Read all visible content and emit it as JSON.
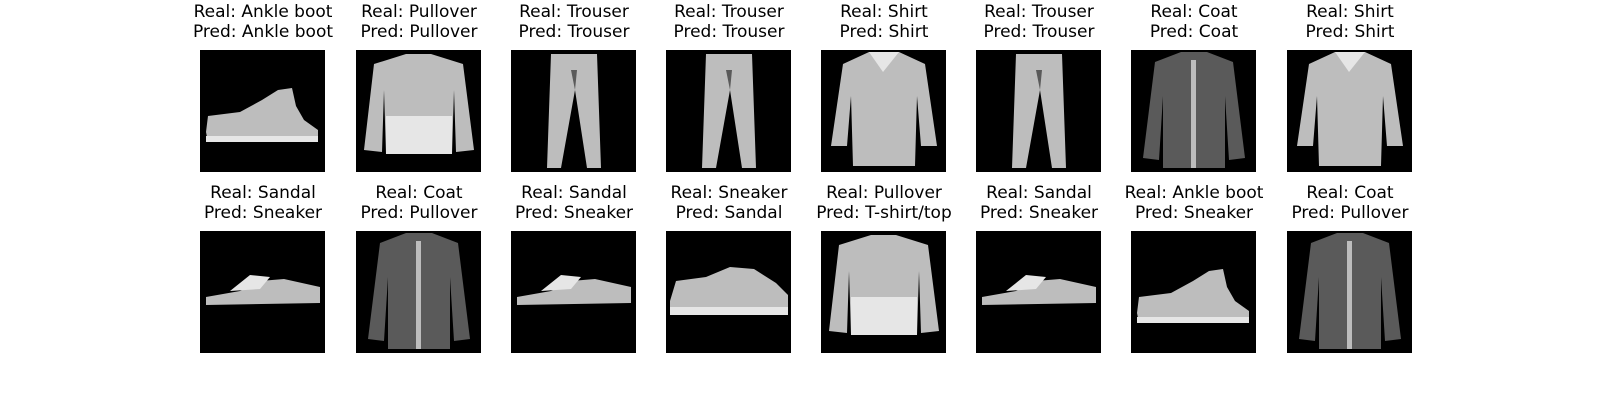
{
  "colors": {
    "background": "#ffffff",
    "tile": "#000000",
    "garment": "#bdbdbd",
    "garment_dark": "#5a5a5a",
    "garment_light": "#e6e6e6"
  },
  "panels": [
    {
      "real": "Real: Ankle boot",
      "pred": "Pred: Ankle boot",
      "icon": "ankle-boot-icon"
    },
    {
      "real": "Real: Pullover",
      "pred": "Pred: Pullover",
      "icon": "pullover-icon"
    },
    {
      "real": "Real: Trouser",
      "pred": "Pred: Trouser",
      "icon": "trouser-icon"
    },
    {
      "real": "Real: Trouser",
      "pred": "Pred: Trouser",
      "icon": "trouser-icon"
    },
    {
      "real": "Real: Shirt",
      "pred": "Pred: Shirt",
      "icon": "shirt-icon"
    },
    {
      "real": "Real: Trouser",
      "pred": "Pred: Trouser",
      "icon": "trouser-icon"
    },
    {
      "real": "Real: Coat",
      "pred": "Pred: Coat",
      "icon": "coat-icon"
    },
    {
      "real": "Real: Shirt",
      "pred": "Pred: Shirt",
      "icon": "shirt-icon"
    },
    {
      "real": "Real: Sandal",
      "pred": "Pred: Sneaker",
      "icon": "sandal-icon"
    },
    {
      "real": "Real: Coat",
      "pred": "Pred: Pullover",
      "icon": "coat-icon"
    },
    {
      "real": "Real: Sandal",
      "pred": "Pred: Sneaker",
      "icon": "sandal-icon"
    },
    {
      "real": "Real: Sneaker",
      "pred": "Pred: Sandal",
      "icon": "sneaker-icon"
    },
    {
      "real": "Real: Pullover",
      "pred": "Pred: T-shirt/top",
      "icon": "pullover-icon"
    },
    {
      "real": "Real: Sandal",
      "pred": "Pred: Sneaker",
      "icon": "sandal-icon"
    },
    {
      "real": "Real: Ankle boot",
      "pred": "Pred: Sneaker",
      "icon": "ankle-boot-icon"
    },
    {
      "real": "Real: Coat",
      "pred": "Pred: Pullover",
      "icon": "coat-icon"
    }
  ]
}
